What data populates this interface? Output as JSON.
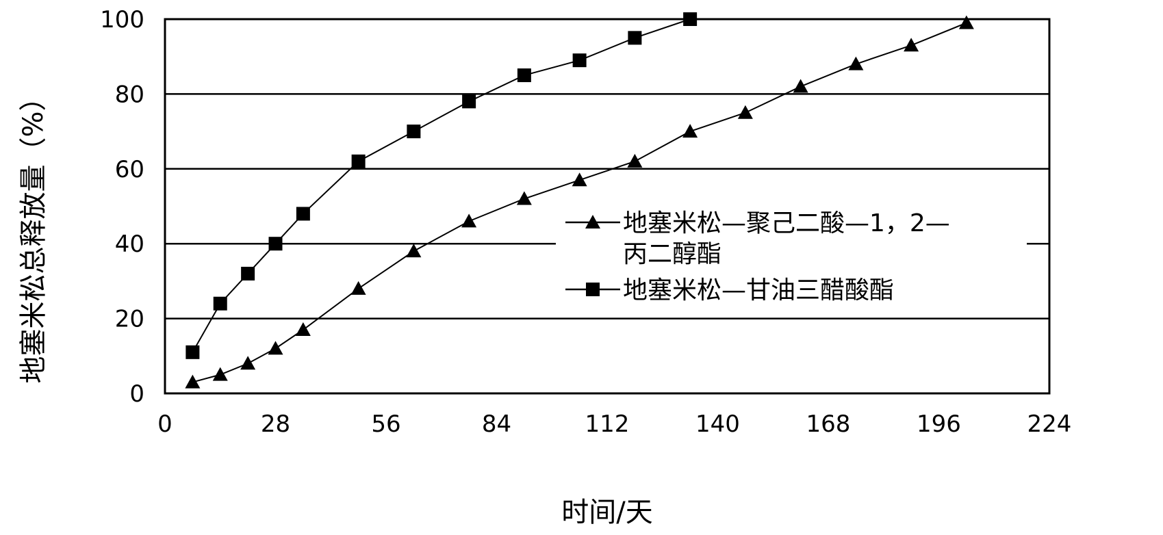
{
  "chart_data": {
    "type": "line",
    "title": "",
    "xlabel": "时间/天",
    "ylabel": "地塞米松总释放量（%）",
    "xlim": [
      0,
      224
    ],
    "ylim": [
      0,
      100
    ],
    "x_ticks": [
      "0",
      "28",
      "56",
      "84",
      "112",
      "140",
      "168",
      "196",
      "224"
    ],
    "y_ticks": [
      "0",
      "20",
      "40",
      "60",
      "80",
      "100"
    ],
    "grid": "horizontal",
    "legend_position": "center-right",
    "series": [
      {
        "name": "地塞米松—聚己二酸—1，2—丙二醇酯",
        "name_lines": [
          "地塞米松—聚己二酸—1，2—",
          "丙二醇酯"
        ],
        "marker": "triangle",
        "color": "#000000",
        "x": [
          7,
          14,
          21,
          28,
          35,
          49,
          63,
          77,
          91,
          105,
          119,
          133,
          147,
          161,
          175,
          189,
          203
        ],
        "y": [
          3,
          5,
          8,
          12,
          17,
          28,
          38,
          46,
          52,
          57,
          62,
          70,
          75,
          82,
          88,
          93,
          99
        ]
      },
      {
        "name": "地塞米松—甘油三醋酸酯",
        "name_lines": [
          "地塞米松—甘油三醋酸酯"
        ],
        "marker": "square",
        "color": "#000000",
        "x": [
          7,
          14,
          21,
          28,
          35,
          49,
          63,
          77,
          91,
          105,
          119,
          133
        ],
        "y": [
          11,
          24,
          32,
          40,
          48,
          62,
          70,
          78,
          85,
          89,
          95,
          100
        ]
      }
    ]
  }
}
